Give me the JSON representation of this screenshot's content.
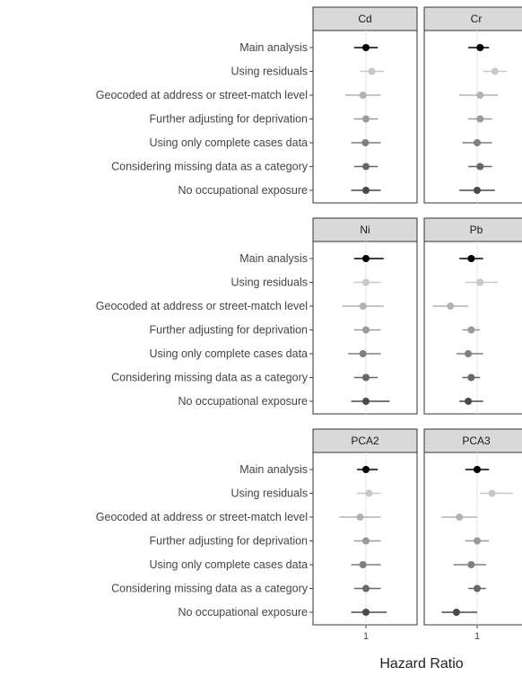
{
  "chart_data": {
    "type": "scatter",
    "subtype": "forest-plot",
    "xlabel": "Hazard Ratio",
    "x_tick_labels": [
      "1"
    ],
    "reference_line": 1,
    "row_labels": [
      "Main analysis",
      "Using residuals",
      "Geocoded at address or street-match level",
      "Further adjusting for deprivation",
      "Using only complete cases data",
      "Considering missing data as a category",
      "No occupational exposure"
    ],
    "row_colors": [
      "#000000",
      "#c8c8c8",
      "#b2b2b2",
      "#9a9a9a",
      "#7f7f7f",
      "#666666",
      "#4a4a4a"
    ],
    "panels": [
      {
        "name": "Cd",
        "points": [
          {
            "est": 1.0,
            "lo": 0.96,
            "hi": 1.04
          },
          {
            "est": 1.02,
            "lo": 0.98,
            "hi": 1.06
          },
          {
            "est": 0.99,
            "lo": 0.93,
            "hi": 1.05
          },
          {
            "est": 1.0,
            "lo": 0.96,
            "hi": 1.04
          },
          {
            "est": 0.998,
            "lo": 0.95,
            "hi": 1.05
          },
          {
            "est": 1.0,
            "lo": 0.96,
            "hi": 1.04
          },
          {
            "est": 1.0,
            "lo": 0.95,
            "hi": 1.05
          }
        ]
      },
      {
        "name": "Cr",
        "points": [
          {
            "est": 1.01,
            "lo": 0.97,
            "hi": 1.04
          },
          {
            "est": 1.06,
            "lo": 1.02,
            "hi": 1.1
          },
          {
            "est": 1.01,
            "lo": 0.94,
            "hi": 1.07
          },
          {
            "est": 1.01,
            "lo": 0.97,
            "hi": 1.05
          },
          {
            "est": 1.0,
            "lo": 0.95,
            "hi": 1.05
          },
          {
            "est": 1.01,
            "lo": 0.97,
            "hi": 1.05
          },
          {
            "est": 1.0,
            "lo": 0.94,
            "hi": 1.06
          }
        ]
      },
      {
        "name": "Ni",
        "points": [
          {
            "est": 1.0,
            "lo": 0.96,
            "hi": 1.06
          },
          {
            "est": 1.0,
            "lo": 0.96,
            "hi": 1.05
          },
          {
            "est": 0.99,
            "lo": 0.92,
            "hi": 1.06
          },
          {
            "est": 1.0,
            "lo": 0.96,
            "hi": 1.05
          },
          {
            "est": 0.99,
            "lo": 0.94,
            "hi": 1.05
          },
          {
            "est": 1.0,
            "lo": 0.96,
            "hi": 1.04
          },
          {
            "est": 1.0,
            "lo": 0.95,
            "hi": 1.08
          }
        ]
      },
      {
        "name": "Pb",
        "points": [
          {
            "est": 0.98,
            "lo": 0.94,
            "hi": 1.02
          },
          {
            "est": 1.01,
            "lo": 0.96,
            "hi": 1.07
          },
          {
            "est": 0.91,
            "lo": 0.85,
            "hi": 0.97
          },
          {
            "est": 0.98,
            "lo": 0.95,
            "hi": 1.01
          },
          {
            "est": 0.97,
            "lo": 0.93,
            "hi": 1.02
          },
          {
            "est": 0.98,
            "lo": 0.95,
            "hi": 1.01
          },
          {
            "est": 0.97,
            "lo": 0.94,
            "hi": 1.02
          }
        ]
      },
      {
        "name": "PCA2",
        "points": [
          {
            "est": 1.0,
            "lo": 0.97,
            "hi": 1.04
          },
          {
            "est": 1.01,
            "lo": 0.97,
            "hi": 1.05
          },
          {
            "est": 0.98,
            "lo": 0.91,
            "hi": 1.05
          },
          {
            "est": 1.0,
            "lo": 0.96,
            "hi": 1.05
          },
          {
            "est": 0.99,
            "lo": 0.95,
            "hi": 1.05
          },
          {
            "est": 1.0,
            "lo": 0.96,
            "hi": 1.05
          },
          {
            "est": 1.0,
            "lo": 0.95,
            "hi": 1.07
          }
        ]
      },
      {
        "name": "PCA3",
        "points": [
          {
            "est": 1.0,
            "lo": 0.96,
            "hi": 1.04
          },
          {
            "est": 1.05,
            "lo": 1.01,
            "hi": 1.12
          },
          {
            "est": 0.94,
            "lo": 0.88,
            "hi": 1.0
          },
          {
            "est": 1.0,
            "lo": 0.96,
            "hi": 1.04
          },
          {
            "est": 0.98,
            "lo": 0.92,
            "hi": 1.03
          },
          {
            "est": 1.0,
            "lo": 0.97,
            "hi": 1.03
          },
          {
            "est": 0.93,
            "lo": 0.88,
            "hi": 1.0
          }
        ]
      }
    ]
  }
}
